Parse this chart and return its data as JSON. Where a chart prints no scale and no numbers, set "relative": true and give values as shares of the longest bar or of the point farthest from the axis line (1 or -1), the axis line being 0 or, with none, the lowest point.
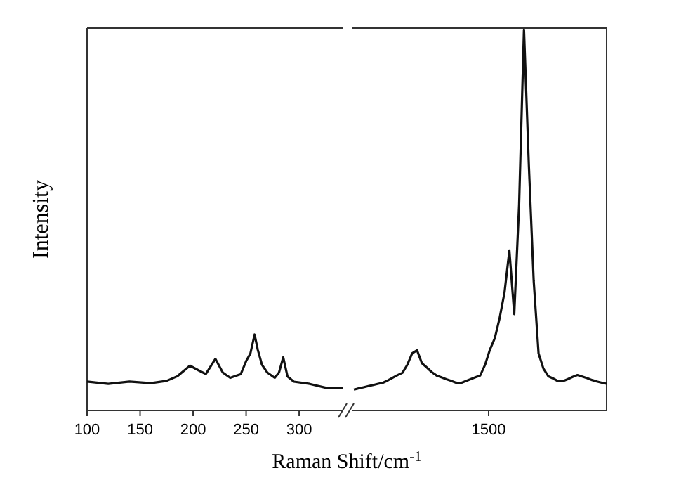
{
  "chart_data": [
    {
      "type": "line",
      "xlabel": "Raman Shift/cm$^{-1}$",
      "ylabel": "Intensity",
      "relative": true,
      "xlim": [
        100,
        341
      ],
      "xticks": [
        100,
        150,
        200,
        250,
        300
      ],
      "series": [
        {
          "color": "#111111",
          "x": [
            100,
            120,
            140,
            160,
            175,
            185,
            197,
            205,
            212,
            221,
            228,
            235,
            245,
            250,
            254,
            258,
            261,
            265,
            270,
            277,
            281,
            285,
            289,
            295,
            310,
            325,
            341
          ],
          "values": [
            0.38,
            0.35,
            0.38,
            0.36,
            0.39,
            0.45,
            0.59,
            0.53,
            0.48,
            0.68,
            0.5,
            0.43,
            0.48,
            0.65,
            0.75,
            1,
            0.8,
            0.6,
            0.5,
            0.43,
            0.5,
            0.7,
            0.45,
            0.38,
            0.35,
            0.3,
            0.3
          ]
        }
      ]
    },
    {
      "type": "line",
      "relative": true,
      "annotations": [
        "1500"
      ],
      "categories": [
        null,
        null,
        null,
        null,
        null,
        null,
        null,
        null,
        null,
        null,
        null,
        null,
        null,
        null,
        null,
        null,
        null,
        null,
        null,
        null,
        null,
        null,
        null,
        null,
        null,
        null,
        null,
        null,
        null,
        null,
        null,
        null,
        null,
        null,
        null,
        null,
        null,
        null,
        null,
        null,
        null,
        null,
        null,
        null,
        null,
        null,
        null,
        null,
        null,
        null,
        null,
        null,
        null
      ],
      "series": [
        {
          "color": "#111111",
          "values": [
            0.055,
            0.058,
            0.061,
            0.064,
            0.067,
            0.07,
            0.073,
            0.079,
            0.086,
            0.093,
            0.099,
            0.12,
            0.15,
            0.158,
            0.124,
            0.113,
            0.101,
            0.092,
            0.087,
            0.082,
            0.078,
            0.073,
            0.072,
            0.077,
            0.082,
            0.087,
            0.092,
            0.12,
            0.16,
            0.19,
            0.243,
            0.31,
            0.42,
            0.253,
            0.54,
            1,
            0.645,
            0.34,
            0.15,
            0.11,
            0.09,
            0.084,
            0.077,
            0.077,
            0.082,
            0.088,
            0.093,
            0.089,
            0.085,
            0.08,
            0.076,
            0.073,
            0.07
          ]
        }
      ]
    }
  ]
}
